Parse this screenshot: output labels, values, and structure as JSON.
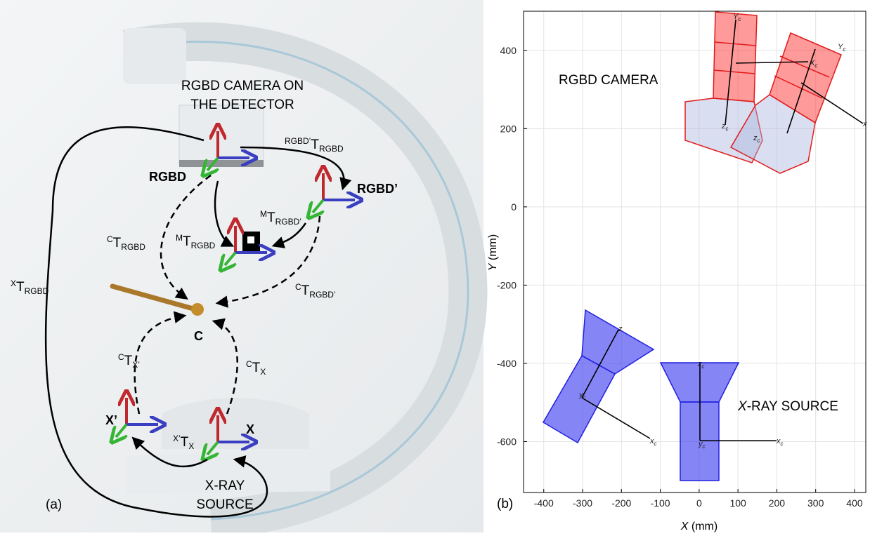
{
  "panel_a": {
    "label": "(a)",
    "camera_title": [
      "RGBD CAMERA ON",
      "THE DETECTOR"
    ],
    "source_title": [
      "X-RAY",
      "SOURCE"
    ],
    "frames": {
      "rgbd": "RGBD",
      "rgbd_prime": "RGBD’",
      "c": "C",
      "x_prime": "X’",
      "x": "X"
    },
    "transforms": [
      {
        "pre": "RGBD’",
        "main": "T",
        "sub": "RGBD"
      },
      {
        "pre": "M",
        "main": "T",
        "sub": "RGBD’"
      },
      {
        "pre": "M",
        "main": "T",
        "sub": "RGBD"
      },
      {
        "pre": "C",
        "main": "T",
        "sub": "RGBD"
      },
      {
        "pre": "X",
        "main": "T",
        "sub": "RGBD"
      },
      {
        "pre": "C",
        "main": "T",
        "sub": "RGBD’"
      },
      {
        "pre": "C",
        "main": "T",
        "sub": "X’"
      },
      {
        "pre": "C",
        "main": "T",
        "sub": "X"
      },
      {
        "pre": "X’",
        "main": "T",
        "sub": "X"
      }
    ]
  },
  "chart_data": {
    "type": "scene",
    "label": "(b)",
    "xlabel": {
      "var": "X",
      "unit": " (mm)"
    },
    "ylabel": {
      "var": "Y",
      "unit": " (mm)"
    },
    "xlim": [
      -452,
      429
    ],
    "xticks": [
      -400,
      -300,
      -200,
      -100,
      0,
      100,
      200,
      300,
      400
    ],
    "ylim": [
      -730,
      500
    ],
    "yticks": [
      -600,
      -400,
      -200,
      0,
      200,
      400
    ],
    "grid": true,
    "annotations": [
      {
        "text": "RGBD CAMERA"
      },
      {
        "var": "X",
        "text": "-RAY SOURCE"
      }
    ],
    "frame_labels": [
      {
        "main": "Y",
        "sub": "c"
      },
      {
        "main": "Y",
        "sub": "c"
      },
      {
        "main": "X",
        "sub": "c"
      },
      {
        "main": "x"
      },
      {
        "main": "z",
        "sub": "c"
      },
      {
        "main": "z",
        "sub": "c"
      },
      {
        "main": "z"
      },
      {
        "main": "y",
        "sub": "c"
      },
      {
        "main": "x",
        "sub": "c"
      },
      {
        "main": "z",
        "sub": "c"
      },
      {
        "main": "y",
        "sub": "c"
      },
      {
        "main": "x",
        "sub": "c"
      }
    ]
  }
}
